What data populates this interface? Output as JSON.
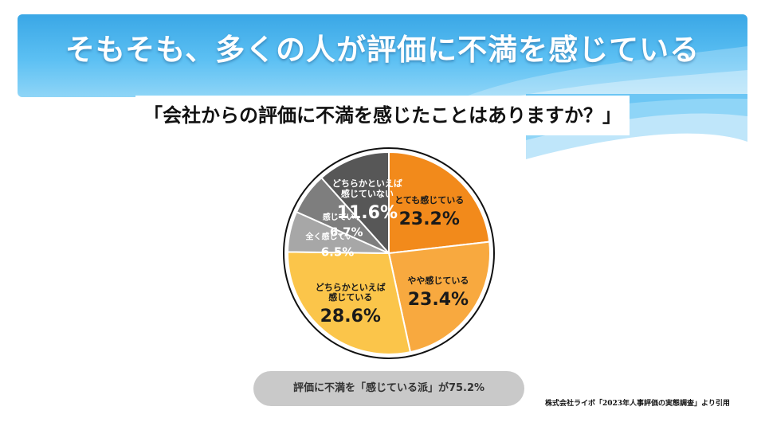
{
  "title": "そもそも、多くの人が評価に不満を感じている",
  "question": "「会社からの評価に不満を感じたことはありますか？」",
  "summary": "評価に不満を「感じている派」が75.2%",
  "source": "株式会社ライボ「2023年人事評価の実態調査」より引用",
  "colors": {
    "banner": "#3aa7e6",
    "とても感じている": "#f28a1b",
    "やや感じている": "#f8a93f",
    "どちらかといえば感じている": "#fbc54a",
    "全く感じていない": "#a7a7a7",
    "感じていない": "#7e7e7e",
    "どちらかといえば感じていない": "#575757"
  },
  "chart_data": {
    "type": "pie",
    "slices": [
      {
        "label": "とても感じている",
        "value": 23.2,
        "value_label": "23.2%",
        "color": "#f28a1b",
        "label_color": "#1a1a1a"
      },
      {
        "label": "やや感じている",
        "value": 23.4,
        "value_label": "23.4%",
        "color": "#f8a93f",
        "label_color": "#1a1a1a"
      },
      {
        "label": "どちらかといえば\n感じている",
        "value": 28.6,
        "value_label": "28.6%",
        "color": "#fbc54a",
        "label_color": "#1a1a1a"
      },
      {
        "label": "全く感じていない",
        "value": 6.5,
        "value_label": "6.5%",
        "color": "#a7a7a7",
        "label_color": "#ffffff"
      },
      {
        "label": "感じていない",
        "value": 6.7,
        "value_label": "6.7%",
        "color": "#7e7e7e",
        "label_color": "#ffffff"
      },
      {
        "label": "どちらかといえば\n感じていない",
        "value": 11.6,
        "value_label": "11.6%",
        "color": "#575757",
        "label_color": "#ffffff"
      }
    ]
  }
}
